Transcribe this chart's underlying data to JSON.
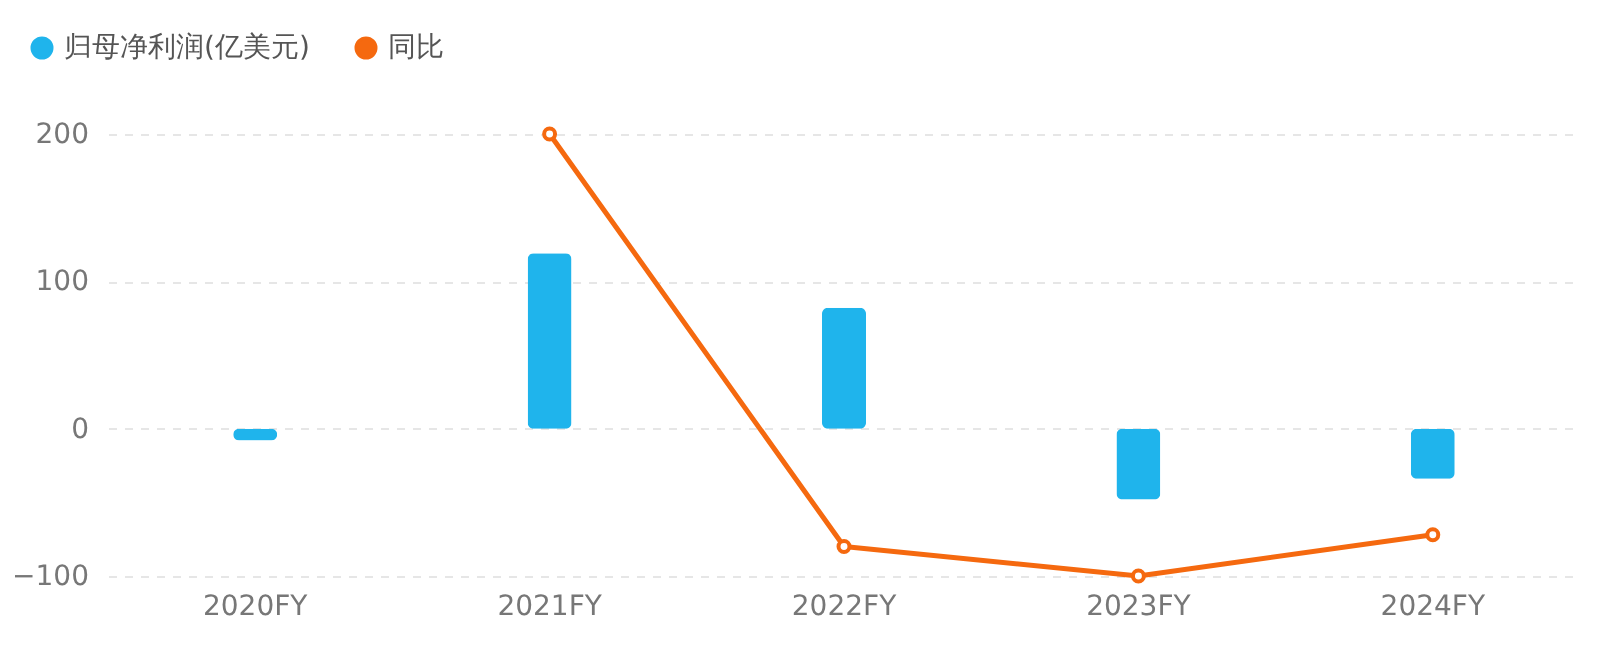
{
  "chart_data": {
    "type": "bar",
    "categories": [
      "2020FY",
      "2021FY",
      "2022FY",
      "2023FY",
      "2024FY"
    ],
    "series": [
      {
        "name": "归母净利润(亿美元)",
        "color": "#1fb4ec",
        "values": [
          -8,
          119,
          82,
          -48,
          -34
        ]
      },
      {
        "name": "同比",
        "type": "line",
        "color": "#f5690f",
        "marker": "circle",
        "values": [
          null,
          200,
          -80,
          -100,
          -72
        ]
      }
    ],
    "ylim": [
      -100,
      200
    ],
    "yticks": [
      -100,
      0,
      100,
      200
    ],
    "grid": "y",
    "legend": "top left"
  }
}
